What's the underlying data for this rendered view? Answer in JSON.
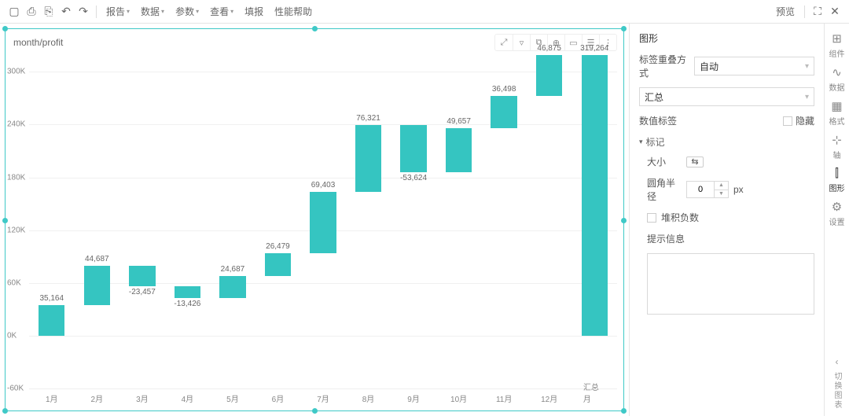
{
  "toolbar": {
    "menus": [
      "报告",
      "数据",
      "参数",
      "查看",
      "填报",
      "性能帮助"
    ],
    "preview": "预览"
  },
  "chart": {
    "title": "month/profit",
    "type": "waterfall-bar",
    "bar_color": "#35c5c1",
    "grid_color": "#f0f0f0",
    "background_color": "#ffffff",
    "ylim": [
      -60000,
      320000
    ],
    "yticks": [
      -60000,
      0,
      60000,
      120000,
      180000,
      240000,
      300000
    ],
    "ytick_labels": [
      "-60K",
      "0K",
      "60K",
      "120K",
      "180K",
      "240K",
      "300K"
    ],
    "categories": [
      "1月",
      "2月",
      "3月",
      "4月",
      "5月",
      "6月",
      "7月",
      "8月",
      "9月",
      "10月",
      "11月",
      "12月",
      "汇总月"
    ],
    "bars": [
      {
        "from": 0,
        "to": 35164,
        "label": "35,164"
      },
      {
        "from": 35164,
        "to": 79851,
        "label": "44,687"
      },
      {
        "from": 79851,
        "to": 56394,
        "label": "-23,457"
      },
      {
        "from": 56394,
        "to": 42968,
        "label": "-13,426"
      },
      {
        "from": 42968,
        "to": 67655,
        "label": "24,687"
      },
      {
        "from": 67655,
        "to": 94134,
        "label": "26,479"
      },
      {
        "from": 94134,
        "to": 163537,
        "label": "69,403"
      },
      {
        "from": 163537,
        "to": 239858,
        "label": "76,321"
      },
      {
        "from": 239858,
        "to": 186234,
        "label": "-53,624"
      },
      {
        "from": 186234,
        "to": 235891,
        "label": "49,657"
      },
      {
        "from": 235891,
        "to": 272389,
        "label": "36,498"
      },
      {
        "from": 272389,
        "to": 319264,
        "label": "46,875"
      },
      {
        "from": 0,
        "to": 319264,
        "label": "319,264"
      }
    ],
    "bar_width_ratio": 0.58,
    "label_fontsize": 10
  },
  "panel": {
    "title": "图形",
    "label_overlap_label": "标签重叠方式",
    "label_overlap_value": "自动",
    "summary_value": "汇总",
    "numeric_label": "数值标签",
    "hide_label": "隐藏",
    "marker_section": "标记",
    "size_label": "大小",
    "radius_label": "圆角半径",
    "radius_value": "0",
    "radius_unit": "px",
    "stack_neg_label": "堆积负数",
    "tooltip_label": "提示信息"
  },
  "rail": {
    "items": [
      {
        "icon": "⊞",
        "label": "组件"
      },
      {
        "icon": "∿",
        "label": "数据"
      },
      {
        "icon": "▦",
        "label": "格式"
      },
      {
        "icon": "⊹",
        "label": "轴"
      },
      {
        "icon": "⫿",
        "label": "图形"
      },
      {
        "icon": "⚙",
        "label": "设置"
      }
    ],
    "bottom": "切换图表"
  }
}
